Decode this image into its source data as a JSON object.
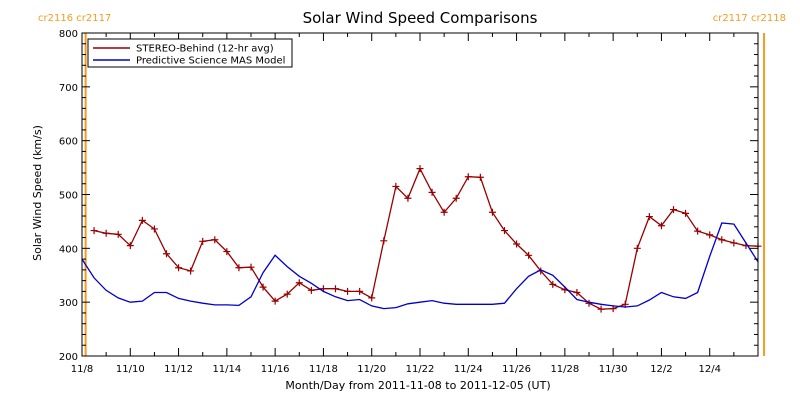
{
  "chart_data": {
    "type": "line",
    "title": "Solar Wind Speed Comparisons",
    "xlabel": "Month/Day from 2011-11-08 to 2011-12-05 (UT)",
    "ylabel": "Solar Wind Speed (km/s)",
    "ylim": [
      200,
      800
    ],
    "yticks": [
      200,
      300,
      400,
      500,
      600,
      700,
      800
    ],
    "xlim_days": [
      0,
      28
    ],
    "xticks": [
      {
        "day": 0,
        "label": "11/8"
      },
      {
        "day": 2,
        "label": "11/10"
      },
      {
        "day": 4,
        "label": "11/12"
      },
      {
        "day": 6,
        "label": "11/14"
      },
      {
        "day": 8,
        "label": "11/16"
      },
      {
        "day": 10,
        "label": "11/18"
      },
      {
        "day": 12,
        "label": "11/20"
      },
      {
        "day": 14,
        "label": "11/22"
      },
      {
        "day": 16,
        "label": "11/24"
      },
      {
        "day": 18,
        "label": "11/26"
      },
      {
        "day": 20,
        "label": "11/28"
      },
      {
        "day": 22,
        "label": "11/30"
      },
      {
        "day": 24,
        "label": "12/2"
      },
      {
        "day": 26,
        "label": "12/4"
      }
    ],
    "carrington_markers": [
      {
        "day": 0.15,
        "label": "cr2116 cr2117",
        "color": "#f39c1f",
        "align": "left"
      },
      {
        "day": 28.25,
        "label": "cr2117 cr2118",
        "color": "#f39c1f",
        "align": "right"
      }
    ],
    "series": [
      {
        "name": "STEREO-Behind (12-hr avg)",
        "color": "#990000",
        "markers": true,
        "x": [
          0.5,
          1.0,
          1.5,
          2.0,
          2.5,
          3.0,
          3.5,
          4.0,
          4.5,
          5.0,
          5.5,
          6.0,
          6.5,
          7.0,
          7.5,
          8.0,
          8.5,
          9.0,
          9.5,
          10.0,
          10.5,
          11.0,
          11.5,
          12.0,
          12.5,
          13.0,
          13.5,
          14.0,
          14.5,
          15.0,
          15.5,
          16.0,
          16.5,
          17.0,
          17.5,
          18.0,
          18.5,
          19.0,
          19.5,
          20.0,
          20.5,
          21.0,
          21.5,
          22.0,
          22.5,
          23.0,
          23.5,
          24.0,
          24.5,
          25.0,
          25.5,
          26.0,
          26.5,
          27.0,
          27.5,
          28.0
        ],
        "y": [
          433,
          428,
          426,
          405,
          452,
          436,
          390,
          364,
          358,
          413,
          416,
          394,
          364,
          365,
          328,
          302,
          315,
          336,
          322,
          325,
          325,
          320,
          320,
          308,
          414,
          515,
          493,
          548,
          504,
          467,
          493,
          533,
          532,
          467,
          433,
          408,
          387,
          358,
          333,
          323,
          318,
          298,
          287,
          288,
          296,
          400,
          459,
          442,
          472,
          465,
          432,
          425,
          416,
          410,
          405,
          404
        ]
      },
      {
        "name": "Predictive Science MAS Model",
        "color": "#0000cc",
        "markers": false,
        "x": [
          0.0,
          0.5,
          1.0,
          1.5,
          2.0,
          2.5,
          3.0,
          3.5,
          4.0,
          4.5,
          5.0,
          5.5,
          6.0,
          6.5,
          7.0,
          7.5,
          8.0,
          8.5,
          9.0,
          9.5,
          10.0,
          10.5,
          11.0,
          11.5,
          12.0,
          12.5,
          13.0,
          13.5,
          14.0,
          14.5,
          15.0,
          15.5,
          16.0,
          16.5,
          17.0,
          17.5,
          18.0,
          18.5,
          19.0,
          19.5,
          20.0,
          20.5,
          21.0,
          21.5,
          22.0,
          22.5,
          23.0,
          23.5,
          24.0,
          24.5,
          25.0,
          25.5,
          26.0,
          26.5,
          27.0,
          27.5,
          28.0
        ],
        "y": [
          380,
          345,
          322,
          308,
          300,
          302,
          318,
          318,
          307,
          302,
          298,
          295,
          295,
          294,
          310,
          355,
          387,
          366,
          348,
          335,
          320,
          310,
          303,
          305,
          293,
          288,
          290,
          297,
          300,
          303,
          298,
          296,
          296,
          296,
          296,
          298,
          325,
          348,
          360,
          350,
          328,
          305,
          300,
          296,
          293,
          291,
          293,
          304,
          318,
          310,
          307,
          318,
          385,
          447,
          445,
          410,
          375
        ]
      }
    ],
    "legend": {
      "placement": "top-left",
      "boxed": true
    }
  }
}
